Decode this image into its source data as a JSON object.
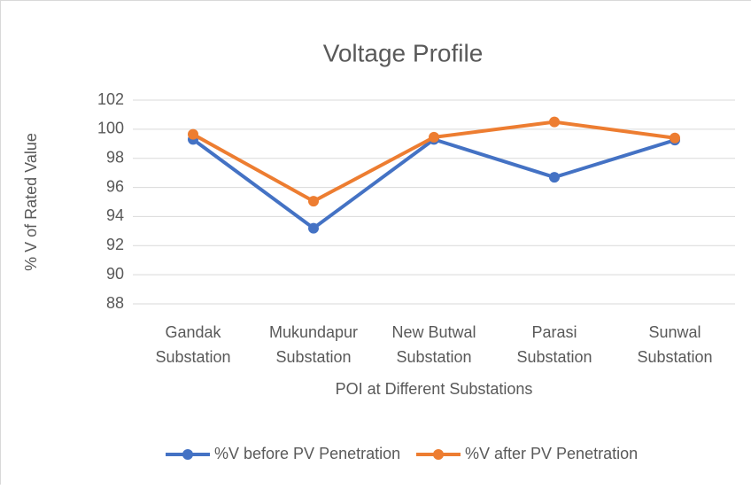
{
  "chart_data": {
    "type": "line",
    "title": "Voltage Profile",
    "x_label": "POI at Different Substations",
    "y_label": "% V of Rated Value",
    "categories": [
      "Gandak Substation",
      "Mukundapur Substation",
      "New Butwal Substation",
      "Parasi Substation",
      "Sunwal Substation"
    ],
    "series": [
      {
        "name": "%V before PV Penetration",
        "color": "#4472c4",
        "values": [
          99.3,
          93.2,
          99.3,
          96.7,
          99.25
        ]
      },
      {
        "name": "%V after PV Penetration",
        "color": "#ed7d31",
        "values": [
          99.65,
          95.05,
          99.45,
          100.5,
          99.4
        ]
      }
    ],
    "ylim": [
      88,
      102
    ],
    "yticks": [
      88,
      90,
      92,
      94,
      96,
      98,
      100,
      102
    ],
    "grid": true,
    "legend": "bottom"
  }
}
